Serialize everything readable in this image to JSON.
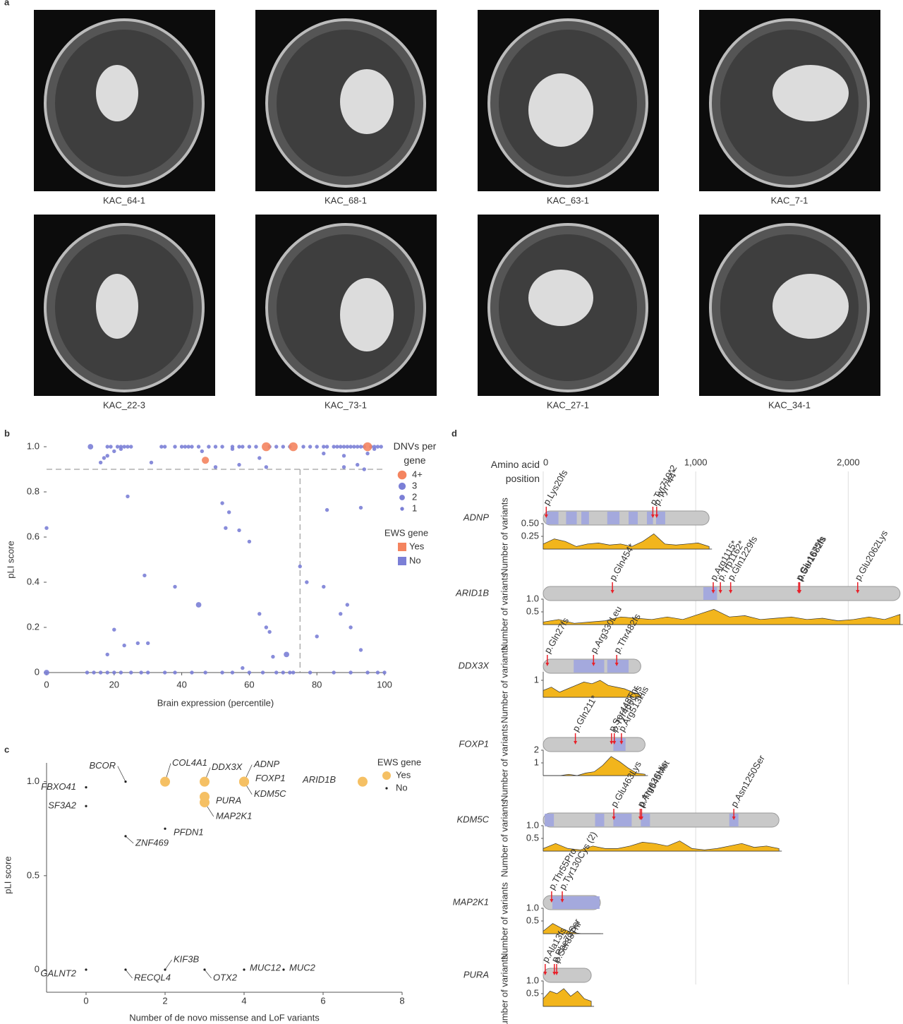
{
  "panel_labels": [
    "a",
    "b",
    "c",
    "d"
  ],
  "mri": {
    "labels": [
      "KAC_64-1",
      "KAC_68-1",
      "KAC_63-1",
      "KAC_7-1",
      "KAC_22-3",
      "KAC_73-1",
      "KAC_27-1",
      "KAC_34-1"
    ]
  },
  "chart_data": [
    {
      "type": "scatter",
      "x_label": "Brain expression (percentile)",
      "y_label": "pLI score",
      "xlim": [
        0,
        100
      ],
      "ylim": [
        0,
        1
      ],
      "xticks": [
        0,
        20,
        40,
        60,
        80,
        100
      ],
      "yticks": [
        0,
        0.2,
        0.4,
        0.6,
        0.8,
        {
          "value": 1,
          "label": "1.0"
        }
      ],
      "threshold_y": 0.9,
      "threshold_x": 75,
      "size_legend": {
        "title": "DNVs per gene",
        "values": [
          {
            "value": 4,
            "label": "4+"
          },
          3,
          2,
          1
        ]
      },
      "legend_title": "EWS gene",
      "series": [
        {
          "name": "Yes",
          "color": "#f4845f",
          "x": [
            47,
            65,
            73,
            95
          ],
          "y": [
            0.94,
            1,
            1,
            1
          ],
          "dnvs": [
            3,
            4,
            4,
            4
          ]
        },
        {
          "name": "No",
          "color": "#7b7fd6",
          "x": [
            13,
            18,
            19,
            21,
            22,
            23,
            24,
            25,
            34,
            35,
            38,
            40,
            41,
            42,
            43,
            45,
            48,
            50,
            52,
            55,
            57,
            58,
            60,
            62,
            66,
            68,
            70,
            72,
            76,
            78,
            80,
            82,
            83,
            85,
            86,
            87,
            88,
            89,
            90,
            91,
            92,
            93,
            94,
            96,
            97,
            98,
            99,
            18,
            20,
            22,
            46,
            55,
            63,
            82,
            88,
            95,
            97,
            16,
            17,
            31,
            50,
            57,
            65,
            88,
            92,
            94,
            0,
            24,
            52,
            53,
            57,
            54,
            93,
            29,
            38,
            45,
            20,
            18,
            23,
            27,
            30,
            63,
            65,
            66,
            71,
            77,
            80,
            82,
            87,
            89,
            90,
            60,
            75,
            83,
            93,
            67,
            58,
            0,
            12,
            14,
            16,
            18,
            20,
            22,
            25,
            28,
            30,
            35,
            38,
            43,
            47,
            52,
            55,
            60,
            64,
            68,
            70,
            72,
            73,
            78,
            85,
            90,
            95,
            98,
            100
          ],
          "y": [
            1,
            1,
            1,
            1,
            1,
            1,
            1,
            1,
            1,
            1,
            1,
            1,
            1,
            1,
            1,
            1,
            1,
            1,
            1,
            1,
            1,
            1,
            1,
            1,
            1,
            1,
            1,
            1,
            1,
            1,
            1,
            1,
            1,
            1,
            1,
            1,
            1,
            1,
            1,
            1,
            1,
            1,
            1,
            1,
            1,
            1,
            1,
            0.96,
            0.98,
            0.99,
            0.98,
            0.99,
            0.95,
            0.97,
            0.96,
            0.97,
            0.99,
            0.93,
            0.95,
            0.93,
            0.91,
            0.92,
            0.91,
            0.91,
            0.92,
            0.9,
            0.64,
            0.78,
            0.75,
            0.64,
            0.63,
            0.71,
            0.73,
            0.43,
            0.38,
            0.3,
            0.19,
            0.08,
            0.12,
            0.13,
            0.13,
            0.26,
            0.2,
            0.18,
            0.08,
            0.4,
            0.16,
            0.38,
            0.26,
            0.3,
            0.2,
            0.58,
            0.47,
            0.72,
            0.1,
            0.07,
            0.02,
            0,
            0,
            0,
            0,
            0,
            0,
            0,
            0,
            0,
            0,
            0,
            0,
            0,
            0,
            0,
            0,
            0,
            0,
            0,
            0,
            0,
            0,
            0,
            0,
            0,
            0,
            0,
            0
          ],
          "dnvs": [
            2,
            1,
            1,
            1,
            1,
            1,
            1,
            1,
            1,
            1,
            1,
            1,
            1,
            1,
            1,
            1,
            1,
            1,
            1,
            1,
            1,
            1,
            1,
            1,
            1,
            1,
            1,
            1,
            1,
            1,
            1,
            1,
            1,
            1,
            1,
            1,
            1,
            1,
            1,
            1,
            1,
            1,
            1,
            1,
            1,
            1,
            1,
            1,
            1,
            1,
            1,
            1,
            1,
            1,
            1,
            1,
            1,
            1,
            1,
            1,
            1,
            1,
            1,
            1,
            1,
            1,
            1,
            1,
            1,
            1,
            1,
            1,
            1,
            1,
            1,
            2,
            1,
            1,
            1,
            1,
            1,
            1,
            1,
            1,
            2,
            1,
            1,
            1,
            1,
            1,
            1,
            1,
            1,
            1,
            1,
            1,
            1,
            2,
            1,
            1,
            1,
            1,
            1,
            1,
            1,
            1,
            1,
            1,
            1,
            1,
            1,
            1,
            1,
            1,
            1,
            1,
            1,
            1,
            1,
            1,
            1,
            1,
            1,
            1,
            1
          ]
        }
      ]
    },
    {
      "type": "scatter",
      "x_label": "Number of de novo missense and LoF variants",
      "y_label": "pLI score",
      "xlim": [
        -1,
        8
      ],
      "ylim": [
        -0.12,
        1.1
      ],
      "xticks": [
        0,
        2,
        4,
        6,
        8
      ],
      "yticks": [
        0,
        0.5,
        {
          "value": 1,
          "label": "1.0"
        }
      ],
      "legend_title": "EWS gene",
      "series": [
        {
          "name": "Yes",
          "color": "#f5c064",
          "label_color": "#e8212a",
          "x": [
            7,
            3,
            4,
            4,
            4,
            3,
            3,
            2
          ],
          "y": [
            1,
            1,
            1,
            1,
            1,
            0.92,
            0.89,
            1
          ],
          "labels": [
            "ARID1B",
            "DDX3X",
            "ADNP",
            "FOXP1",
            "KDM5C",
            "PURA",
            "MAP2K1",
            "COL4A1"
          ]
        },
        {
          "name": "No",
          "color": "#222222",
          "label_color": "#222222",
          "x": [
            0,
            0,
            1,
            1,
            2,
            0,
            1,
            2,
            3,
            4,
            5
          ],
          "y": [
            0.97,
            0.87,
            1,
            0.71,
            0.75,
            0,
            0,
            0,
            0,
            0,
            0
          ],
          "labels": [
            "FBXO41",
            "SF3A2",
            "BCOR",
            "ZNF469",
            "PFDN1",
            "GALNT2",
            "RECQL4",
            "KIF3B",
            "OTX2",
            "MUC12",
            "MUC2"
          ]
        }
      ]
    }
  ],
  "protein_panel": {
    "axis_label": "Amino acid position",
    "y_label": "Number of variants",
    "xlim": [
      0,
      2350
    ],
    "xticks": [
      0,
      {
        "value": 1000,
        "label": "1,000"
      },
      {
        "value": 2000,
        "label": "2,000"
      }
    ],
    "bar_color": "#c9c9c9",
    "domain_color": "#9ea3e0",
    "density_color": "#f2b51c",
    "variant_color": "#e8212a",
    "proteins": [
      {
        "name": "ADNP",
        "length": 1088,
        "domains": [
          [
            20,
            100
          ],
          [
            150,
            220
          ],
          [
            250,
            300
          ],
          [
            420,
            500
          ],
          [
            560,
            620
          ],
          [
            680,
            720
          ],
          [
            740,
            800
          ]
        ],
        "variants": [
          {
            "label": "p.Lys20fs",
            "position": 20
          },
          {
            "label": "p.Tyr719*2",
            "position": 719
          },
          {
            "label": "p.Tyr744*",
            "position": 744
          }
        ],
        "ylim": [
          0,
          0.5
        ],
        "yticks": [
          0.25,
          {
            "value": 0.5,
            "label": "0.50"
          }
        ],
        "density": [
          0.1,
          0.2,
          0.15,
          0.05,
          0.1,
          0.12,
          0.08,
          0.1,
          0.05,
          0.15,
          0.3,
          0.1,
          0.08,
          0.1,
          0.12,
          0.05
        ]
      },
      {
        "name": "ARID1B",
        "length": 2340,
        "domains": [
          [
            1050,
            1140
          ]
        ],
        "variants": [
          {
            "label": "p.Gln454*",
            "position": 454
          },
          {
            "label": "p.Arg1115*",
            "position": 1115
          },
          {
            "label": "p.Trp1162*",
            "position": 1162
          },
          {
            "label": "p.Gln1229fs",
            "position": 1229
          },
          {
            "label": "p.Glu1675fs",
            "position": 1675
          },
          {
            "label": "p.Ser1682fs",
            "position": 1682
          },
          {
            "label": "p.Glu2062Lys",
            "position": 2062
          }
        ],
        "ylim": [
          0,
          1
        ],
        "yticks": [
          0.5,
          {
            "value": 1,
            "label": "1.0"
          }
        ],
        "density": [
          0.1,
          0.2,
          0.05,
          0.1,
          0.15,
          0.3,
          0.25,
          0.2,
          0.3,
          0.2,
          0.4,
          0.6,
          0.3,
          0.35,
          0.2,
          0.25,
          0.3,
          0.2,
          0.25,
          0.15,
          0.2,
          0.3,
          0.2,
          0.4
        ]
      },
      {
        "name": "DDX3X",
        "length": 640,
        "domains": [
          [
            200,
            400
          ],
          [
            420,
            560
          ]
        ],
        "variants": [
          {
            "label": "p.Gln27fs",
            "position": 27
          },
          {
            "label": "p.Arg330Leu",
            "position": 330
          },
          {
            "label": "p.Thr482fs",
            "position": 482
          }
        ],
        "ylim": [
          0,
          1.5
        ],
        "yticks": [
          1
        ],
        "density": [
          0.4,
          0.6,
          0.3,
          0.5,
          0.7,
          0.9,
          0.8,
          1,
          0.7,
          0.6,
          0.5,
          0.3,
          0.1
        ]
      },
      {
        "name": "FOXP1",
        "length": 668,
        "domains": [
          [
            460,
            540
          ]
        ],
        "variants": [
          {
            "label": "p.Gln211*",
            "position": 211
          },
          {
            "label": "p.Ser448Thr",
            "position": 448
          },
          {
            "label": "p.Tyr466Cys",
            "position": 466
          },
          {
            "label": "p.Arg513His",
            "position": 513
          }
        ],
        "ylim": [
          0,
          2
        ],
        "yticks": [
          1,
          2
        ],
        "density": [
          0,
          0,
          0,
          0.1,
          0,
          0.2,
          0.3,
          0.8,
          1.5,
          1.1,
          0.6,
          0.2,
          0.1
        ]
      },
      {
        "name": "KDM5C",
        "length": 1546,
        "domains": [
          [
            10,
            70
          ],
          [
            340,
            400
          ],
          [
            460,
            580
          ],
          [
            640,
            700
          ],
          [
            1220,
            1280
          ]
        ],
        "variants": [
          {
            "label": "p.Glu463Lys",
            "position": 463
          },
          {
            "label": "p.Arg636His",
            "position": 636
          },
          {
            "label": "p.Thr645Met",
            "position": 645
          },
          {
            "label": "p.Asn1250Ser",
            "position": 1250
          }
        ],
        "ylim": [
          0,
          1
        ],
        "yticks": [
          0.5,
          {
            "value": 1,
            "label": "1.0"
          }
        ],
        "density": [
          0.1,
          0.3,
          0.1,
          0.05,
          0.2,
          0.1,
          0.1,
          0.2,
          0.35,
          0.3,
          0.2,
          0.4,
          0.1,
          0.05,
          0.1,
          0.2,
          0.3,
          0.15,
          0.2,
          0.1
        ]
      },
      {
        "name": "MAP2K1",
        "length": 375,
        "domains": [
          [
            60,
            370
          ]
        ],
        "variants": [
          {
            "label": "p.Thr55Pro",
            "position": 55
          },
          {
            "label": "p.Tyr130Cys (2)",
            "position": 125
          }
        ],
        "ylim": [
          0,
          1
        ],
        "yticks": [
          0.5,
          {
            "value": 1,
            "label": "1.0"
          }
        ],
        "density": [
          0.1,
          0.4,
          0.2,
          0.05,
          0,
          0,
          0
        ]
      },
      {
        "name": "PURA",
        "length": 315,
        "domains": [],
        "variants": [
          {
            "label": "p.Ala13fs",
            "position": 13
          },
          {
            "label": "p.Phe73Ser",
            "position": 73
          },
          {
            "label": "p.Ser88Thr",
            "position": 88
          }
        ],
        "ylim": [
          0,
          1
        ],
        "yticks": [
          0.5,
          {
            "value": 1,
            "label": "1.0"
          }
        ],
        "density": [
          0.3,
          0.6,
          0.5,
          0.7,
          0.4,
          0.6,
          0.3,
          0.2
        ]
      }
    ]
  }
}
